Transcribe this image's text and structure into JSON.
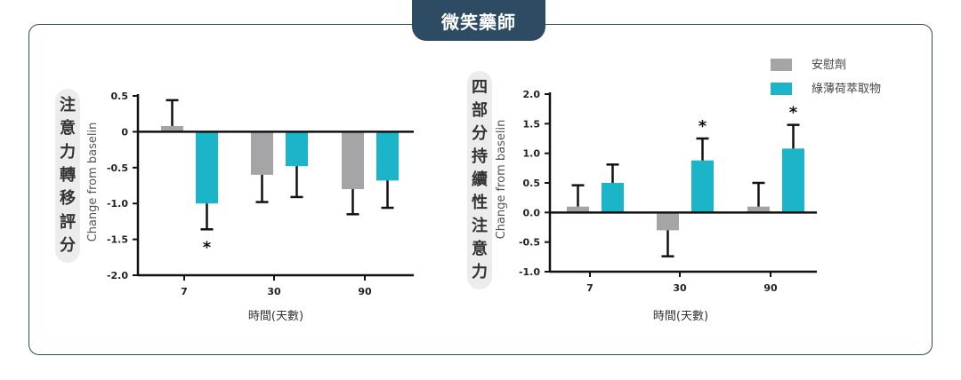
{
  "brand": "微笑藥師",
  "colors": {
    "placebo": "#a5a5a7",
    "mint": "#1bb4c9",
    "frame": "#2f4a63",
    "brand_bg": "#2d4b62"
  },
  "chart_data": [
    {
      "type": "bar",
      "panel_title": "注意力轉移評分",
      "ylabel": "Change from baselin",
      "xlabel": "時間(天數)",
      "categories": [
        "7",
        "30",
        "90"
      ],
      "ylim": [
        -2.0,
        0.5
      ],
      "yticks": [
        0.5,
        0,
        -0.5,
        -1.0,
        -1.5,
        -2.0
      ],
      "ytick_labels": [
        "0.5",
        "0",
        "-0.5",
        "-1.0",
        "-1.5",
        "-2.0"
      ],
      "series": [
        {
          "name": "安慰劑",
          "values": [
            0.08,
            -0.6,
            -0.8
          ],
          "errors": [
            0.36,
            0.38,
            0.35
          ]
        },
        {
          "name": "綠薄荷萃取物",
          "values": [
            -1.0,
            -0.48,
            -0.68
          ],
          "errors": [
            0.36,
            0.43,
            0.38
          ]
        }
      ],
      "annotations": [
        {
          "category": "7",
          "series": 1,
          "text": "*"
        }
      ]
    },
    {
      "type": "bar",
      "panel_title": "四部分持續性注意力",
      "ylabel": "Change from baselin",
      "xlabel": "時間(天數)",
      "categories": [
        "7",
        "30",
        "90"
      ],
      "ylim": [
        -1.0,
        2.0
      ],
      "yticks": [
        2.0,
        1.5,
        1.0,
        0.5,
        0.0,
        -0.5,
        -1.0
      ],
      "ytick_labels": [
        "2.0",
        "1.5",
        "1.0",
        "0.5",
        "0.0",
        "-0.5",
        "-1.0"
      ],
      "series": [
        {
          "name": "安慰劑",
          "values": [
            0.1,
            -0.3,
            0.1
          ],
          "errors": [
            0.36,
            0.44,
            0.4
          ]
        },
        {
          "name": "綠薄荷萃取物",
          "values": [
            0.5,
            0.88,
            1.08
          ],
          "errors": [
            0.31,
            0.37,
            0.4
          ]
        }
      ],
      "annotations": [
        {
          "category": "30",
          "series": 1,
          "text": "*"
        },
        {
          "category": "90",
          "series": 1,
          "text": "*"
        }
      ],
      "legend": {
        "placement": "top-right",
        "entries": [
          "安慰劑",
          "綠薄荷萃取物"
        ]
      }
    }
  ]
}
